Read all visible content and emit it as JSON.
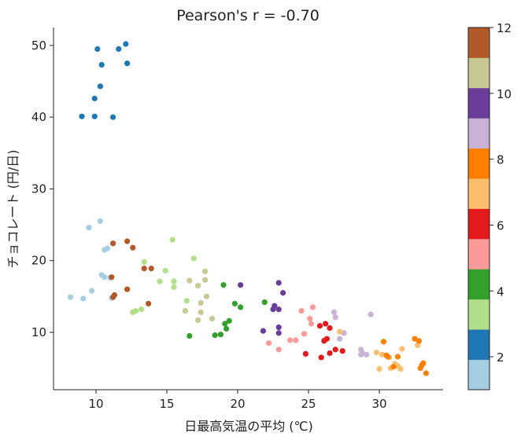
{
  "chart_data": {
    "type": "scatter",
    "title": "Pearson's r = -0.70",
    "xlabel": "日最高気温の平均 (℃)",
    "ylabel": "チョコレート (円/日)",
    "xlim": [
      7,
      34.5
    ],
    "ylim": [
      2,
      52.5
    ],
    "xticks": [
      10,
      15,
      20,
      25,
      30
    ],
    "yticks": [
      10,
      20,
      30,
      40,
      50
    ],
    "grid": false,
    "colorbar": {
      "label": "",
      "range": [
        1,
        12
      ],
      "ticks": [
        2,
        4,
        6,
        8,
        10,
        12
      ],
      "colors": [
        "#a6cee3",
        "#1f78b4",
        "#b2df8a",
        "#33a02c",
        "#fb9a99",
        "#e31a1c",
        "#fdbf6f",
        "#ff7f00",
        "#cab2d6",
        "#6a3d9a",
        "#c8c894",
        "#b15928"
      ]
    },
    "points": [
      [
        10.1,
        49.5,
        2
      ],
      [
        12.1,
        50.2,
        2
      ],
      [
        11.6,
        49.5,
        2
      ],
      [
        12.2,
        47.5,
        2
      ],
      [
        10.4,
        47.3,
        2
      ],
      [
        10.3,
        44.3,
        2
      ],
      [
        9.9,
        42.6,
        2
      ],
      [
        9.0,
        40.1,
        2
      ],
      [
        9.9,
        40.1,
        2
      ],
      [
        11.2,
        40.0,
        2
      ],
      [
        10.3,
        25.5,
        1
      ],
      [
        9.5,
        24.6,
        1
      ],
      [
        10.8,
        21.7,
        1
      ],
      [
        10.6,
        21.5,
        1
      ],
      [
        10.4,
        18.0,
        1
      ],
      [
        10.6,
        17.7,
        1
      ],
      [
        11.0,
        17.6,
        1
      ],
      [
        9.7,
        15.8,
        1
      ],
      [
        8.2,
        14.9,
        1
      ],
      [
        9.1,
        14.7,
        1
      ],
      [
        11.1,
        14.8,
        1
      ],
      [
        11.2,
        22.4,
        12
      ],
      [
        12.2,
        22.7,
        12
      ],
      [
        12.6,
        21.8,
        12
      ],
      [
        13.4,
        18.9,
        12
      ],
      [
        13.9,
        18.9,
        12
      ],
      [
        11.1,
        17.7,
        12
      ],
      [
        12.2,
        16.0,
        12
      ],
      [
        11.3,
        15.2,
        12
      ],
      [
        11.2,
        14.9,
        12
      ],
      [
        13.7,
        14.0,
        12
      ],
      [
        15.4,
        22.9,
        3
      ],
      [
        16.9,
        20.3,
        3
      ],
      [
        13.4,
        19.8,
        3
      ],
      [
        14.9,
        18.6,
        3
      ],
      [
        14.5,
        17.1,
        3
      ],
      [
        15.5,
        17.1,
        3
      ],
      [
        15.5,
        16.3,
        3
      ],
      [
        16.4,
        14.4,
        3
      ],
      [
        13.2,
        13.2,
        3
      ],
      [
        12.6,
        12.8,
        3
      ],
      [
        12.8,
        13.0,
        3
      ],
      [
        17.7,
        18.5,
        11
      ],
      [
        16.6,
        17.2,
        11
      ],
      [
        17.7,
        17.3,
        11
      ],
      [
        17.2,
        16.5,
        11
      ],
      [
        17.8,
        15.0,
        11
      ],
      [
        17.4,
        14.1,
        11
      ],
      [
        16.3,
        13.0,
        11
      ],
      [
        17.4,
        12.8,
        11
      ],
      [
        18.2,
        11.9,
        11
      ],
      [
        17.2,
        11.7,
        11
      ],
      [
        19.0,
        16.6,
        4
      ],
      [
        21.9,
        14.2,
        4
      ],
      [
        19.8,
        14.0,
        4
      ],
      [
        20.2,
        13.5,
        4
      ],
      [
        19.4,
        11.6,
        4
      ],
      [
        19.1,
        11.2,
        4
      ],
      [
        19.2,
        10.5,
        4
      ],
      [
        18.8,
        9.7,
        4
      ],
      [
        18.4,
        9.6,
        4
      ],
      [
        16.6,
        9.5,
        4
      ],
      [
        20.2,
        16.6,
        10
      ],
      [
        22.9,
        16.9,
        10
      ],
      [
        23.2,
        15.5,
        10
      ],
      [
        22.6,
        13.7,
        10
      ],
      [
        22.5,
        13.2,
        10
      ],
      [
        22.9,
        13.2,
        10
      ],
      [
        21.8,
        10.2,
        10
      ],
      [
        22.9,
        10.7,
        10
      ],
      [
        22.9,
        9.9,
        10
      ],
      [
        24.5,
        13.0,
        5
      ],
      [
        25.3,
        13.5,
        5
      ],
      [
        25.1,
        11.9,
        5
      ],
      [
        25.2,
        11.2,
        5
      ],
      [
        24.7,
        9.8,
        5
      ],
      [
        23.7,
        8.9,
        5
      ],
      [
        24.1,
        8.9,
        5
      ],
      [
        22.2,
        8.5,
        5
      ],
      [
        22.9,
        7.6,
        5
      ],
      [
        26.1,
        8.9,
        5
      ],
      [
        25.8,
        10.9,
        6
      ],
      [
        26.2,
        11.2,
        6
      ],
      [
        26.5,
        10.6,
        6
      ],
      [
        26.3,
        9.1,
        6
      ],
      [
        26.1,
        8.8,
        6
      ],
      [
        27.4,
        7.4,
        6
      ],
      [
        26.9,
        7.6,
        6
      ],
      [
        26.5,
        7.1,
        6
      ],
      [
        24.8,
        7.0,
        6
      ],
      [
        25.9,
        6.5,
        6
      ],
      [
        26.8,
        12.8,
        9
      ],
      [
        26.9,
        12.1,
        9
      ],
      [
        29.4,
        12.5,
        9
      ],
      [
        27.5,
        9.9,
        9
      ],
      [
        27.2,
        9.1,
        9
      ],
      [
        28.7,
        7.6,
        9
      ],
      [
        28.8,
        7.1,
        9
      ],
      [
        29.1,
        6.9,
        9
      ],
      [
        28.7,
        6.9,
        9
      ],
      [
        27.2,
        10.1,
        7
      ],
      [
        29.8,
        7.2,
        7
      ],
      [
        30.2,
        6.9,
        7
      ],
      [
        30.7,
        6.5,
        7
      ],
      [
        31.6,
        7.7,
        7
      ],
      [
        32.7,
        8.2,
        7
      ],
      [
        31.1,
        5.6,
        7
      ],
      [
        31.3,
        5.3,
        7
      ],
      [
        30.8,
        5.0,
        7
      ],
      [
        31.5,
        4.9,
        7
      ],
      [
        30.0,
        4.9,
        7
      ],
      [
        30.3,
        8.7,
        8
      ],
      [
        32.5,
        9.1,
        8
      ],
      [
        32.8,
        8.8,
        8
      ],
      [
        31.3,
        6.6,
        8
      ],
      [
        30.6,
        6.6,
        8
      ],
      [
        31.0,
        5.2,
        8
      ],
      [
        33.0,
        5.4,
        8
      ],
      [
        33.1,
        5.7,
        8
      ],
      [
        32.9,
        5.0,
        8
      ],
      [
        33.3,
        4.3,
        8
      ],
      [
        30.5,
        6.8,
        8
      ]
    ]
  }
}
